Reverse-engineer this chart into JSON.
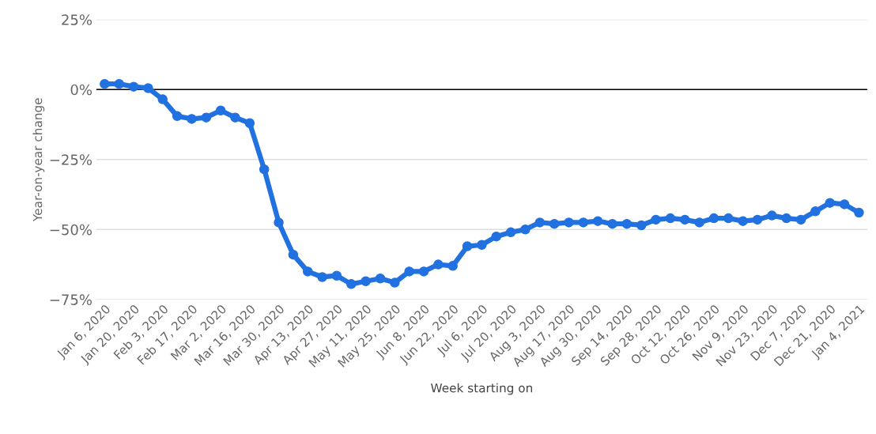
{
  "chart_data": {
    "type": "line",
    "xlabel": "Week starting on",
    "ylabel": "Year-on-year change",
    "x": [
      "2020-01-06",
      "2020-01-13",
      "2020-01-20",
      "2020-01-27",
      "2020-02-03",
      "2020-02-10",
      "2020-02-17",
      "2020-02-24",
      "2020-03-02",
      "2020-03-09",
      "2020-03-16",
      "2020-03-23",
      "2020-03-30",
      "2020-04-06",
      "2020-04-13",
      "2020-04-20",
      "2020-04-27",
      "2020-05-04",
      "2020-05-11",
      "2020-05-18",
      "2020-05-25",
      "2020-06-01",
      "2020-06-08",
      "2020-06-15",
      "2020-06-22",
      "2020-06-29",
      "2020-07-06",
      "2020-07-13",
      "2020-07-20",
      "2020-07-27",
      "2020-08-03",
      "2020-08-10",
      "2020-08-17",
      "2020-08-24",
      "2020-08-31",
      "2020-09-07",
      "2020-09-14",
      "2020-09-21",
      "2020-09-28",
      "2020-10-05",
      "2020-10-12",
      "2020-10-19",
      "2020-10-26",
      "2020-11-02",
      "2020-11-09",
      "2020-11-16",
      "2020-11-23",
      "2020-11-30",
      "2020-12-07",
      "2020-12-14",
      "2020-12-21",
      "2020-12-28",
      "2021-01-04"
    ],
    "series": [
      {
        "color": "#2271e0",
        "values": [
          2,
          2,
          1,
          0.5,
          -3.5,
          -9.5,
          -10.5,
          -10,
          -7.5,
          -10,
          -12,
          -28.5,
          -47.5,
          -59,
          -65,
          -67,
          -66.5,
          -69.5,
          -68.5,
          -67.5,
          -69,
          -65,
          -65,
          -62.5,
          -63,
          -56,
          -55.5,
          -52.5,
          -51,
          -50,
          -47.5,
          -48,
          -47.5,
          -47.5,
          -47,
          -48,
          -48,
          -48.5,
          -46.5,
          -46,
          -46.5,
          -47.5,
          -46,
          -46,
          -47,
          -46.5,
          -45,
          -46,
          -46.5,
          -43.5,
          -40.5,
          -41,
          -44
        ]
      }
    ],
    "marker": "circle",
    "line_style": "solid",
    "grid": "y",
    "legend": false,
    "ylim": [
      -75,
      25
    ],
    "yticks": [
      {
        "value": 25,
        "label": "25%"
      },
      {
        "value": 0,
        "label": "0%"
      },
      {
        "value": -25,
        "label": "−25%"
      },
      {
        "value": -50,
        "label": "−50%"
      },
      {
        "value": -75,
        "label": "−75%"
      }
    ],
    "xlim": [
      "2020-01-02",
      "2021-01-08"
    ],
    "xticks": [
      {
        "value": "2020-01-06",
        "label": "Jan 6, 2020"
      },
      {
        "value": "2020-01-20",
        "label": "Jan 20, 2020"
      },
      {
        "value": "2020-02-03",
        "label": "Feb 3, 2020"
      },
      {
        "value": "2020-02-17",
        "label": "Feb 17, 2020"
      },
      {
        "value": "2020-03-02",
        "label": "Mar 2, 2020"
      },
      {
        "value": "2020-03-16",
        "label": "Mar 16, 2020"
      },
      {
        "value": "2020-03-30",
        "label": "Mar 30, 2020"
      },
      {
        "value": "2020-04-13",
        "label": "Apr 13, 2020"
      },
      {
        "value": "2020-04-27",
        "label": "Apr 27, 2020"
      },
      {
        "value": "2020-05-11",
        "label": "May 11, 2020"
      },
      {
        "value": "2020-05-25",
        "label": "May 25, 2020"
      },
      {
        "value": "2020-06-08",
        "label": "Jun 8, 2020"
      },
      {
        "value": "2020-06-22",
        "label": "Jun 22, 2020"
      },
      {
        "value": "2020-07-06",
        "label": "Jul 6, 2020"
      },
      {
        "value": "2020-07-20",
        "label": "Jul 20, 2020"
      },
      {
        "value": "2020-08-03",
        "label": "Aug 3, 2020"
      },
      {
        "value": "2020-08-17",
        "label": "Aug 17, 2020"
      },
      {
        "value": "2020-08-30",
        "label": "Aug 30, 2020"
      },
      {
        "value": "2020-09-14",
        "label": "Sep 14, 2020"
      },
      {
        "value": "2020-09-28",
        "label": "Sep 28, 2020"
      },
      {
        "value": "2020-10-12",
        "label": "Oct 12, 2020"
      },
      {
        "value": "2020-10-26",
        "label": "Oct 26, 2020"
      },
      {
        "value": "2020-11-09",
        "label": "Nov 9, 2020"
      },
      {
        "value": "2020-11-23",
        "label": "Nov 23, 2020"
      },
      {
        "value": "2020-12-07",
        "label": "Dec 7, 2020"
      },
      {
        "value": "2020-12-21",
        "label": "Dec 21, 2020"
      },
      {
        "value": "2021-01-04",
        "label": "Jan 4, 2021"
      }
    ],
    "ref_lines": [
      {
        "axis": "y",
        "value": 0,
        "color": "#000000",
        "line_style": "solid"
      }
    ]
  }
}
